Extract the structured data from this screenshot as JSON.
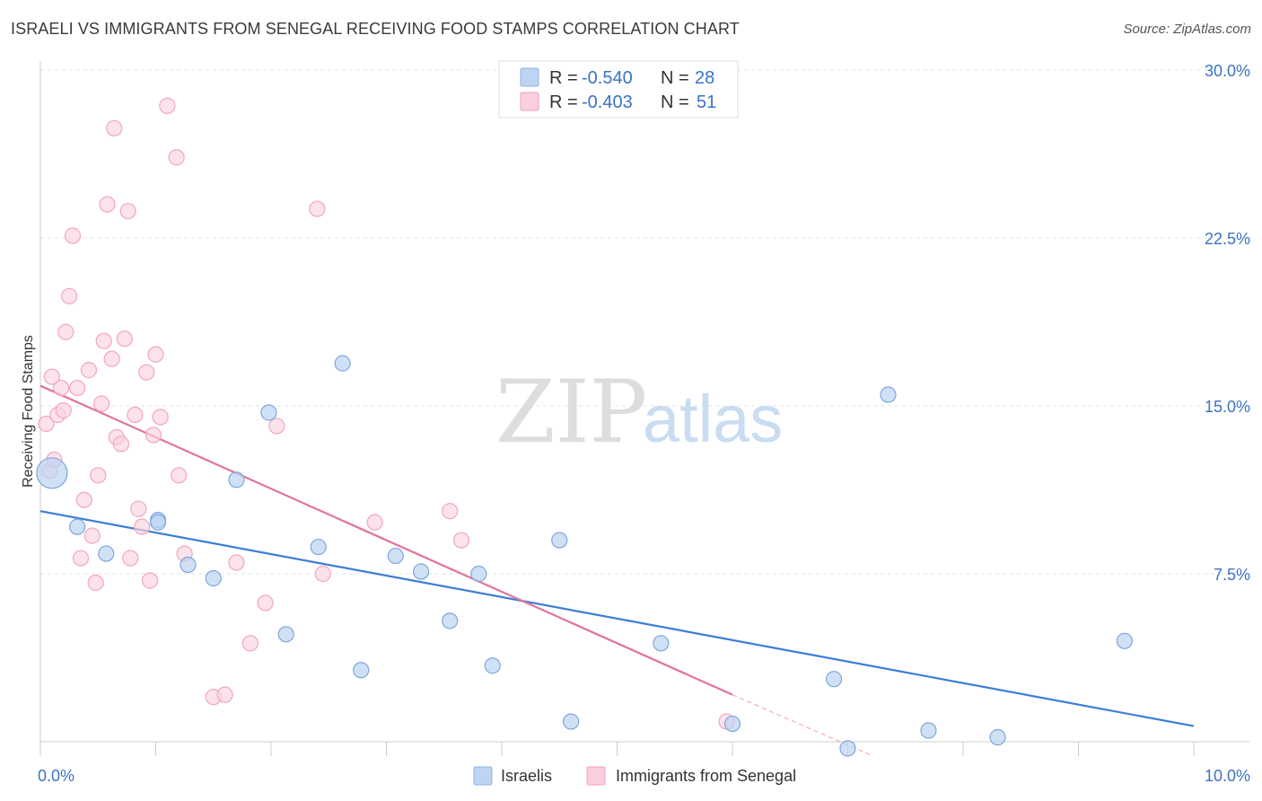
{
  "header": {
    "title": "ISRAELI VS IMMIGRANTS FROM SENEGAL RECEIVING FOOD STAMPS CORRELATION CHART",
    "source": "Source: ZipAtlas.com"
  },
  "watermark": {
    "zip": "ZIP",
    "atlas": "atlas"
  },
  "legend": {
    "rows": [
      {
        "r_label": "R =",
        "r_value": "-0.540",
        "n_label": "N =",
        "n_value": "28",
        "color": "#a7c7ef"
      },
      {
        "r_label": "R =",
        "r_value": "-0.403",
        "n_label": "N =",
        "n_value": "51",
        "color": "#f7b6c8"
      }
    ]
  },
  "bottom_legend": {
    "israelis": "Israelis",
    "senegal": "Immigrants from Senegal"
  },
  "chart_data": {
    "type": "scatter",
    "title": "ISRAELI VS IMMIGRANTS FROM SENEGAL RECEIVING FOOD STAMPS CORRELATION CHART",
    "xlabel": "",
    "ylabel": "Receiving Food Stamps",
    "xlim": [
      0,
      10
    ],
    "ylim": [
      0,
      30
    ],
    "x_tick_labels": [
      "0.0%",
      "10.0%"
    ],
    "y_tick_labels": [
      "7.5%",
      "15.0%",
      "22.5%",
      "30.0%"
    ],
    "y_ticks": [
      7.5,
      15,
      22.5,
      30
    ],
    "colors": {
      "israelis": "#3b7dd8",
      "senegal": "#e2739d"
    },
    "series": [
      {
        "name": "Israelis",
        "R": -0.54,
        "N": 28,
        "trend": {
          "x": [
            0,
            10
          ],
          "y": [
            10.3,
            0.7
          ]
        },
        "points": [
          {
            "x": 0.1,
            "y": 12.0,
            "big": true
          },
          {
            "x": 0.32,
            "y": 9.6
          },
          {
            "x": 0.57,
            "y": 8.4
          },
          {
            "x": 1.02,
            "y": 9.9
          },
          {
            "x": 1.28,
            "y": 7.9
          },
          {
            "x": 1.5,
            "y": 7.3
          },
          {
            "x": 1.7,
            "y": 11.7
          },
          {
            "x": 1.98,
            "y": 14.7
          },
          {
            "x": 2.13,
            "y": 4.8
          },
          {
            "x": 2.41,
            "y": 8.7
          },
          {
            "x": 2.62,
            "y": 16.9
          },
          {
            "x": 2.78,
            "y": 3.2
          },
          {
            "x": 3.08,
            "y": 8.3
          },
          {
            "x": 3.3,
            "y": 7.6
          },
          {
            "x": 3.55,
            "y": 5.4
          },
          {
            "x": 3.8,
            "y": 7.5
          },
          {
            "x": 3.92,
            "y": 3.4
          },
          {
            "x": 4.5,
            "y": 9.0
          },
          {
            "x": 4.6,
            "y": 0.9
          },
          {
            "x": 5.38,
            "y": 4.4
          },
          {
            "x": 6.0,
            "y": 0.8
          },
          {
            "x": 6.88,
            "y": 2.8
          },
          {
            "x": 7.0,
            "y": -0.3
          },
          {
            "x": 7.35,
            "y": 15.5
          },
          {
            "x": 7.7,
            "y": 0.5
          },
          {
            "x": 8.3,
            "y": 0.2
          },
          {
            "x": 9.4,
            "y": 4.5
          },
          {
            "x": 1.02,
            "y": 9.8
          }
        ]
      },
      {
        "name": "Immigrants from Senegal",
        "R": -0.403,
        "N": 51,
        "trend": {
          "x": [
            0,
            6.0
          ],
          "y": [
            15.9,
            2.1
          ]
        },
        "trend_dashed": {
          "x": [
            6.0,
            7.2
          ],
          "y": [
            2.1,
            -0.6
          ]
        },
        "points": [
          {
            "x": 0.05,
            "y": 14.2
          },
          {
            "x": 0.08,
            "y": 12.1
          },
          {
            "x": 0.1,
            "y": 16.3
          },
          {
            "x": 0.12,
            "y": 12.6
          },
          {
            "x": 0.15,
            "y": 14.6
          },
          {
            "x": 0.18,
            "y": 15.8
          },
          {
            "x": 0.2,
            "y": 14.8
          },
          {
            "x": 0.22,
            "y": 18.3
          },
          {
            "x": 0.25,
            "y": 19.9
          },
          {
            "x": 0.28,
            "y": 22.6
          },
          {
            "x": 0.32,
            "y": 15.8
          },
          {
            "x": 0.35,
            "y": 8.2
          },
          {
            "x": 0.38,
            "y": 10.8
          },
          {
            "x": 0.42,
            "y": 16.6
          },
          {
            "x": 0.45,
            "y": 9.2
          },
          {
            "x": 0.48,
            "y": 7.1
          },
          {
            "x": 0.5,
            "y": 11.9
          },
          {
            "x": 0.53,
            "y": 15.1
          },
          {
            "x": 0.55,
            "y": 17.9
          },
          {
            "x": 0.58,
            "y": 24.0
          },
          {
            "x": 0.62,
            "y": 17.1
          },
          {
            "x": 0.64,
            "y": 27.4
          },
          {
            "x": 0.66,
            "y": 13.6
          },
          {
            "x": 0.7,
            "y": 13.3
          },
          {
            "x": 0.73,
            "y": 18.0
          },
          {
            "x": 0.76,
            "y": 23.7
          },
          {
            "x": 0.78,
            "y": 8.2
          },
          {
            "x": 0.82,
            "y": 14.6
          },
          {
            "x": 0.85,
            "y": 10.4
          },
          {
            "x": 0.88,
            "y": 9.6
          },
          {
            "x": 0.92,
            "y": 16.5
          },
          {
            "x": 0.95,
            "y": 7.2
          },
          {
            "x": 0.98,
            "y": 13.7
          },
          {
            "x": 1.0,
            "y": 17.3
          },
          {
            "x": 1.04,
            "y": 14.5
          },
          {
            "x": 1.1,
            "y": 28.4
          },
          {
            "x": 1.18,
            "y": 26.1
          },
          {
            "x": 1.2,
            "y": 11.9
          },
          {
            "x": 1.25,
            "y": 8.4
          },
          {
            "x": 1.5,
            "y": 2.0
          },
          {
            "x": 1.6,
            "y": 2.1
          },
          {
            "x": 1.7,
            "y": 8.0
          },
          {
            "x": 1.82,
            "y": 4.4
          },
          {
            "x": 1.95,
            "y": 6.2
          },
          {
            "x": 2.05,
            "y": 14.1
          },
          {
            "x": 2.4,
            "y": 23.8
          },
          {
            "x": 2.45,
            "y": 7.5
          },
          {
            "x": 2.9,
            "y": 9.8
          },
          {
            "x": 3.55,
            "y": 10.3
          },
          {
            "x": 3.65,
            "y": 9.0
          },
          {
            "x": 5.95,
            "y": 0.9
          }
        ]
      }
    ]
  }
}
